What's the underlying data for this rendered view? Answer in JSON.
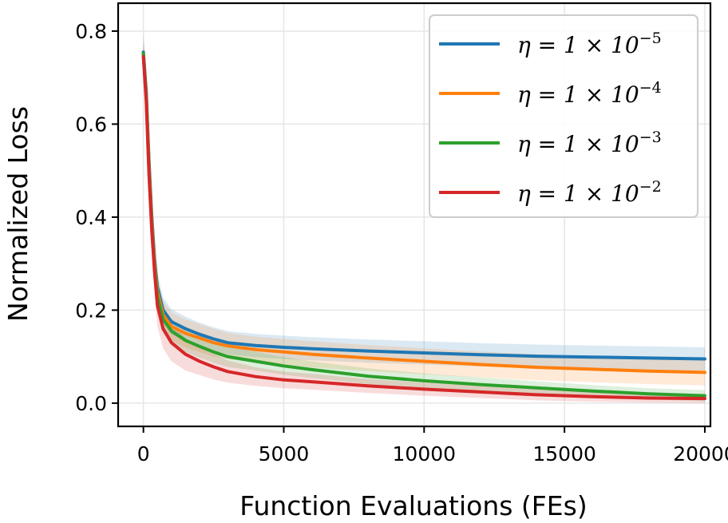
{
  "chart_data": {
    "type": "line",
    "title": "",
    "xlabel": "Function Evaluations (FEs)",
    "ylabel": "Normalized Loss",
    "xlim": [
      -900,
      20200
    ],
    "ylim": [
      -0.05,
      0.86
    ],
    "xticks": [
      0,
      5000,
      10000,
      15000,
      20000
    ],
    "xtick_labels": [
      "0",
      "5000",
      "10000",
      "15000",
      "20000"
    ],
    "yticks": [
      0.0,
      0.2,
      0.4,
      0.6,
      0.8
    ],
    "ytick_labels": [
      "0.0",
      "0.2",
      "0.4",
      "0.6",
      "0.8"
    ],
    "grid": true,
    "legend_position": "top-right",
    "x": [
      0,
      100,
      200,
      300,
      400,
      500,
      700,
      1000,
      1500,
      2000,
      2500,
      3000,
      4000,
      5000,
      6000,
      8000,
      10000,
      12000,
      14000,
      16000,
      18000,
      20000
    ],
    "series": [
      {
        "name": "η = 1 × 10^-5",
        "legend_prefix": "η = 1 × 10",
        "legend_exp": "−5",
        "color": "#1f77b4",
        "values": [
          0.755,
          0.67,
          0.52,
          0.4,
          0.31,
          0.25,
          0.2,
          0.175,
          0.16,
          0.148,
          0.138,
          0.13,
          0.124,
          0.12,
          0.117,
          0.112,
          0.108,
          0.104,
          0.101,
          0.099,
          0.097,
          0.095
        ],
        "band": [
          0.04,
          0.05,
          0.045,
          0.04,
          0.035,
          0.03,
          0.028,
          0.027,
          0.026,
          0.025,
          0.025,
          0.025,
          0.025,
          0.025,
          0.025,
          0.025,
          0.025,
          0.025,
          0.025,
          0.025,
          0.025,
          0.025
        ]
      },
      {
        "name": "η = 1 × 10^-4",
        "legend_prefix": "η = 1 × 10",
        "legend_exp": "−4",
        "color": "#ff7f0e",
        "values": [
          0.75,
          0.66,
          0.51,
          0.39,
          0.3,
          0.24,
          0.19,
          0.165,
          0.15,
          0.14,
          0.13,
          0.123,
          0.115,
          0.11,
          0.105,
          0.097,
          0.09,
          0.083,
          0.077,
          0.073,
          0.069,
          0.066
        ],
        "band": [
          0.035,
          0.045,
          0.04,
          0.035,
          0.032,
          0.03,
          0.03,
          0.03,
          0.03,
          0.03,
          0.03,
          0.028,
          0.028,
          0.028,
          0.028,
          0.028,
          0.028,
          0.028,
          0.028,
          0.028,
          0.028,
          0.028
        ]
      },
      {
        "name": "η = 1 × 10^-3",
        "legend_prefix": "η = 1 × 10",
        "legend_exp": "−3",
        "color": "#2ca02c",
        "values": [
          0.752,
          0.66,
          0.5,
          0.38,
          0.29,
          0.23,
          0.18,
          0.155,
          0.135,
          0.122,
          0.11,
          0.1,
          0.09,
          0.08,
          0.072,
          0.058,
          0.048,
          0.04,
          0.033,
          0.026,
          0.02,
          0.016
        ],
        "band": [
          0.03,
          0.04,
          0.04,
          0.035,
          0.032,
          0.03,
          0.028,
          0.026,
          0.025,
          0.024,
          0.023,
          0.022,
          0.02,
          0.019,
          0.018,
          0.017,
          0.016,
          0.015,
          0.014,
          0.013,
          0.012,
          0.012
        ]
      },
      {
        "name": "η = 1 × 10^-2",
        "legend_prefix": "η = 1 × 10",
        "legend_exp": "−2",
        "color": "#d62728",
        "values": [
          0.745,
          0.65,
          0.49,
          0.37,
          0.28,
          0.21,
          0.16,
          0.13,
          0.105,
          0.09,
          0.078,
          0.068,
          0.057,
          0.05,
          0.046,
          0.037,
          0.03,
          0.024,
          0.018,
          0.014,
          0.011,
          0.01
        ],
        "band": [
          0.03,
          0.04,
          0.045,
          0.045,
          0.045,
          0.045,
          0.042,
          0.04,
          0.035,
          0.03,
          0.027,
          0.024,
          0.02,
          0.018,
          0.017,
          0.015,
          0.014,
          0.013,
          0.012,
          0.011,
          0.01,
          0.01
        ]
      }
    ]
  }
}
